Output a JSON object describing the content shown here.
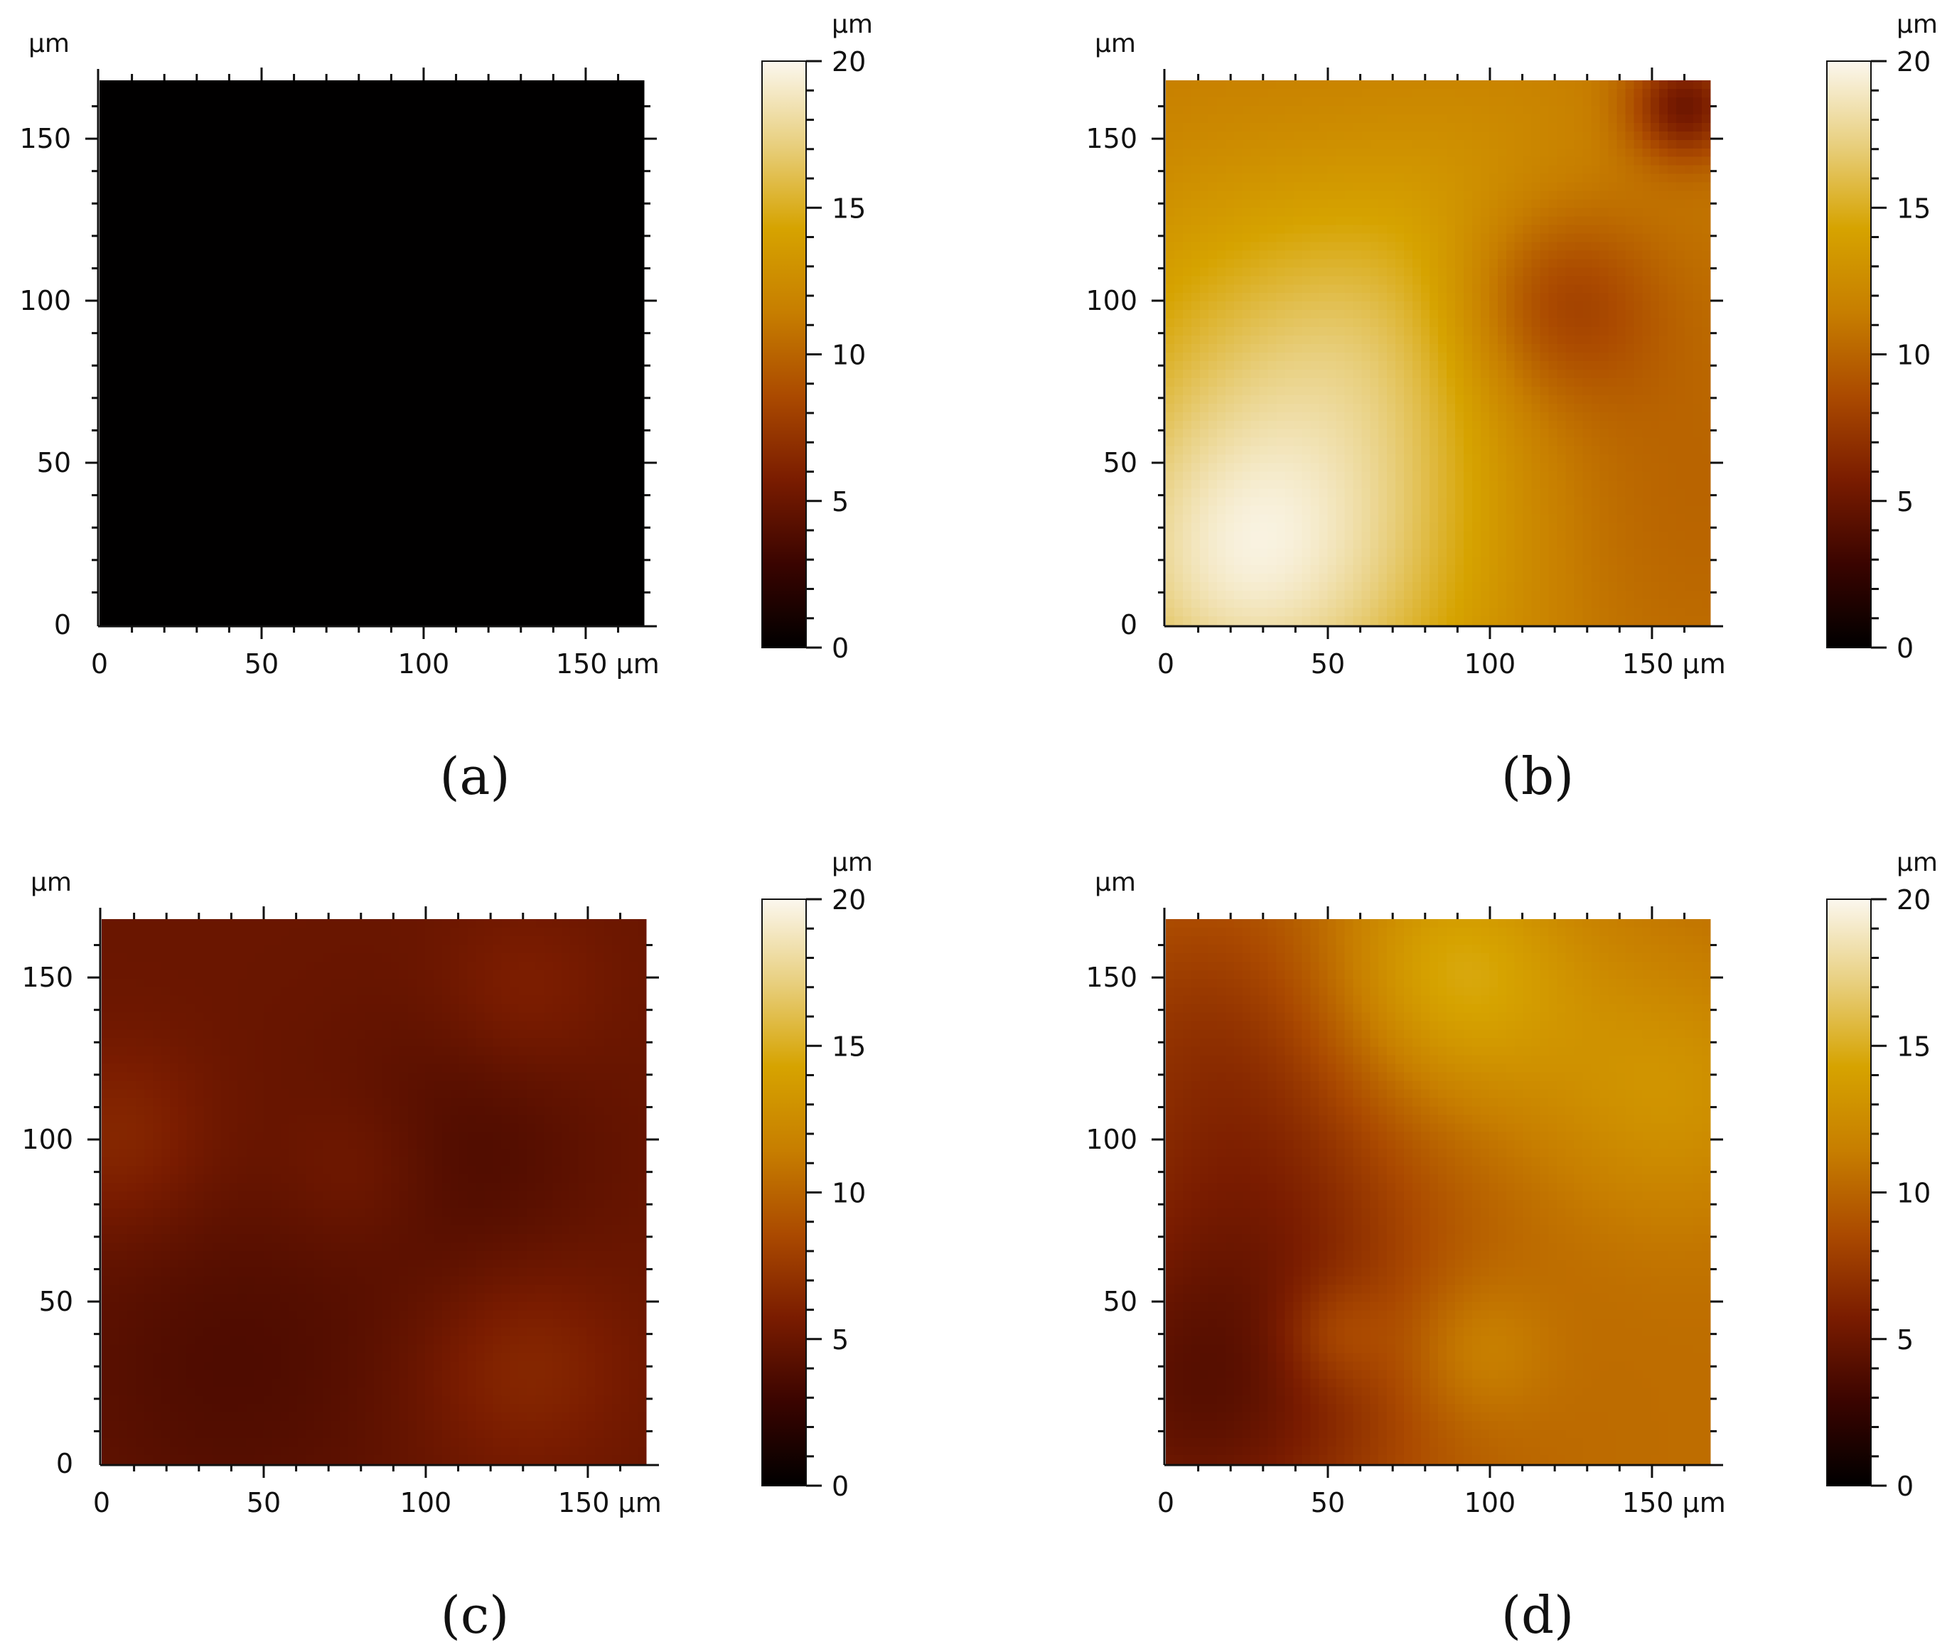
{
  "colormap_colors": [
    "#000000",
    "#3a0400",
    "#7a1c00",
    "#ab4a00",
    "#c77e00",
    "#d6a300",
    "#e8cf7e",
    "#fbf7ee"
  ],
  "chart_data": [
    {
      "type": "heatmap",
      "panel": "a",
      "caption": "(a)",
      "x_unit_label": "μm",
      "y_unit_label": "μm",
      "colorbar_unit_label": "μm",
      "xlim": [
        0,
        168
      ],
      "ylim": [
        0,
        168
      ],
      "x_ticks": [
        0,
        50,
        100,
        150
      ],
      "x_tick_labels": [
        "0",
        "50",
        "100",
        "150 μm"
      ],
      "y_ticks": [
        0,
        50,
        100,
        150
      ],
      "y_tick_labels": [
        "0",
        "50",
        "100",
        "150"
      ],
      "colorbar_range": [
        0,
        20
      ],
      "colorbar_ticks": [
        0,
        5,
        10,
        15,
        20
      ],
      "colorbar_tick_labels": [
        "0",
        "5",
        "10",
        "15",
        "20"
      ],
      "height_map_um": {
        "base": 0.05,
        "features": []
      }
    },
    {
      "type": "heatmap",
      "panel": "b",
      "caption": "(b)",
      "x_unit_label": "μm",
      "y_unit_label": "μm",
      "colorbar_unit_label": "μm",
      "xlim": [
        0,
        168
      ],
      "ylim": [
        0,
        168
      ],
      "x_ticks": [
        0,
        50,
        100,
        150
      ],
      "x_tick_labels": [
        "0",
        "50",
        "100",
        "150 μm"
      ],
      "y_ticks": [
        0,
        50,
        100,
        150
      ],
      "y_tick_labels": [
        "0",
        "50",
        "100",
        "150"
      ],
      "colorbar_range": [
        0,
        20
      ],
      "colorbar_ticks": [
        0,
        5,
        10,
        15,
        20
      ],
      "colorbar_tick_labels": [
        "0",
        "5",
        "10",
        "15",
        "20"
      ],
      "height_map_um": {
        "base": 11,
        "features": [
          {
            "x": 40,
            "y": 30,
            "r": 50,
            "dz": 7
          },
          {
            "x": 15,
            "y": 15,
            "r": 30,
            "dz": 2
          },
          {
            "x": 20,
            "y": 110,
            "r": 40,
            "dz": 1.5
          },
          {
            "x": 100,
            "y": 130,
            "r": 35,
            "dz": 1.5
          },
          {
            "x": 70,
            "y": 90,
            "r": 30,
            "dz": 1.5
          },
          {
            "x": 120,
            "y": 100,
            "r": 22,
            "dz": -4
          },
          {
            "x": 160,
            "y": 160,
            "r": 12,
            "dz": -6
          },
          {
            "x": 140,
            "y": 40,
            "r": 45,
            "dz": -1.5
          }
        ]
      }
    },
    {
      "type": "heatmap",
      "panel": "c",
      "caption": "(c)",
      "x_unit_label": "μm",
      "y_unit_label": "μm",
      "colorbar_unit_label": "μm",
      "xlim": [
        0,
        168
      ],
      "ylim": [
        0,
        168
      ],
      "x_ticks": [
        0,
        50,
        100,
        150
      ],
      "x_tick_labels": [
        "0",
        "50",
        "100",
        "150 μm"
      ],
      "y_ticks": [
        0,
        50,
        100,
        150
      ],
      "y_tick_labels": [
        "0",
        "50",
        "100",
        "150"
      ],
      "colorbar_range": [
        0,
        20
      ],
      "colorbar_ticks": [
        0,
        5,
        10,
        15,
        20
      ],
      "colorbar_tick_labels": [
        "0",
        "5",
        "10",
        "15",
        "20"
      ],
      "height_map_um": {
        "base": 5,
        "features": [
          {
            "x": 5,
            "y": 100,
            "r": 20,
            "dz": 1.5
          },
          {
            "x": 130,
            "y": 30,
            "r": 22,
            "dz": 1.5
          },
          {
            "x": 80,
            "y": 90,
            "r": 18,
            "dz": 1
          },
          {
            "x": 130,
            "y": 145,
            "r": 18,
            "dz": 1
          },
          {
            "x": 40,
            "y": 30,
            "r": 40,
            "dz": -1.2
          },
          {
            "x": 110,
            "y": 95,
            "r": 30,
            "dz": -1.2
          }
        ]
      }
    },
    {
      "type": "heatmap",
      "panel": "d",
      "caption": "(d)",
      "x_unit_label": "μm",
      "y_unit_label": "μm",
      "colorbar_unit_label": "μm",
      "xlim": [
        0,
        168
      ],
      "ylim": [
        0,
        168
      ],
      "x_ticks": [
        0,
        50,
        100,
        150
      ],
      "x_tick_labels": [
        "0",
        "50",
        "100",
        "150 μm"
      ],
      "y_ticks": [
        50,
        100,
        150
      ],
      "y_tick_labels": [
        "50",
        "100",
        "150"
      ],
      "colorbar_range": [
        0,
        20
      ],
      "colorbar_ticks": [
        0,
        5,
        10,
        15,
        20
      ],
      "colorbar_tick_labels": [
        "0",
        "5",
        "10",
        "15",
        "20"
      ],
      "height_map_um": {
        "base": 10.5,
        "features": [
          {
            "x": 88,
            "y": 150,
            "r": 28,
            "dz": 4.5
          },
          {
            "x": 155,
            "y": 115,
            "r": 28,
            "dz": 2.5
          },
          {
            "x": 95,
            "y": 35,
            "r": 16,
            "dz": 2
          },
          {
            "x": 52,
            "y": 40,
            "r": 12,
            "dz": 2
          },
          {
            "x": 10,
            "y": 20,
            "r": 45,
            "dz": -6
          },
          {
            "x": 15,
            "y": 130,
            "r": 40,
            "dz": -3
          },
          {
            "x": 40,
            "y": 80,
            "r": 35,
            "dz": -1.5
          }
        ]
      }
    }
  ]
}
